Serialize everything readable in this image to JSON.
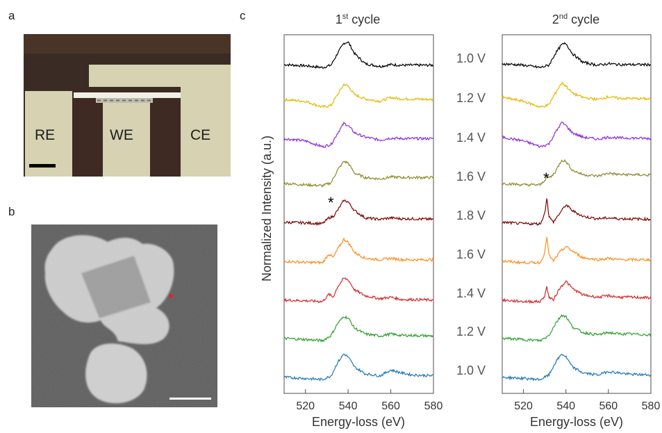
{
  "panels": {
    "a": {
      "label": "a",
      "electrodes": [
        "RE",
        "WE",
        "CE"
      ]
    },
    "b": {
      "label": "b"
    },
    "c": {
      "label": "c"
    }
  },
  "colors": {
    "photo_frame": "#3a2c24",
    "photo_pad": "#d6d2b2",
    "photo_background": "#3e2a22",
    "stem_background": "#5a5a5a",
    "particle": "#cfcfcf",
    "particle_core": "#9d9d9d",
    "marker_dot": "#e0242a"
  },
  "chart_data": {
    "type": "line",
    "xlabel": "Energy-loss (eV)",
    "ylabel": "Normalized Intensity (a.u.)",
    "xlim": [
      510,
      580
    ],
    "xticks": [
      520,
      540,
      560,
      580
    ],
    "voltage_labels": [
      "1.0 V",
      "1.2 V",
      "1.4 V",
      "1.6 V",
      "1.8 V",
      "1.6 V",
      "1.4 V",
      "1.2 V",
      "1.0 V"
    ],
    "series_colors": [
      "#000000",
      "#e6b800",
      "#8a2be2",
      "#8b8b2a",
      "#800000",
      "#ff8c1a",
      "#d62728",
      "#2ca02c",
      "#1f77b4"
    ],
    "panels": [
      {
        "title_main": "1",
        "title_sup": "st",
        "title_rest": " cycle",
        "star_text": "*",
        "series": [
          {
            "x": [
              510,
              520,
              528,
              532,
              535,
              538,
              540,
              543,
              548,
              555,
              560,
              565,
              570,
              580
            ],
            "y": [
              0.12,
              0.08,
              0.02,
              0.1,
              0.5,
              0.85,
              0.9,
              0.5,
              0.15,
              0.06,
              0.12,
              0.1,
              0.1,
              0.1
            ]
          },
          {
            "x": [
              510,
              520,
              528,
              532,
              535,
              538,
              540,
              543,
              548,
              555,
              560,
              565,
              570,
              580
            ],
            "y": [
              0.28,
              0.22,
              0.02,
              0.08,
              0.45,
              0.8,
              0.75,
              0.45,
              0.3,
              0.22,
              0.35,
              0.3,
              0.3,
              0.28
            ]
          },
          {
            "x": [
              510,
              520,
              528,
              532,
              535,
              538,
              540,
              543,
              548,
              555,
              560,
              565,
              570,
              580
            ],
            "y": [
              0.3,
              0.22,
              0.02,
              0.1,
              0.48,
              0.82,
              0.75,
              0.5,
              0.35,
              0.25,
              0.32,
              0.3,
              0.3,
              0.3
            ]
          },
          {
            "x": [
              510,
              520,
              528,
              532,
              535,
              538,
              540,
              543,
              548,
              555,
              560,
              565,
              570,
              580
            ],
            "y": [
              0.1,
              0.05,
              0.02,
              0.12,
              0.55,
              0.85,
              0.8,
              0.45,
              0.3,
              0.25,
              0.32,
              0.3,
              0.3,
              0.3
            ]
          },
          {
            "x": [
              510,
              520,
              528,
              531,
              533,
              535,
              538,
              540,
              543,
              548,
              555,
              560,
              565,
              570,
              580
            ],
            "y": [
              0.1,
              0.08,
              0.05,
              0.25,
              0.3,
              0.5,
              0.85,
              0.8,
              0.5,
              0.25,
              0.2,
              0.25,
              0.22,
              0.22,
              0.2
            ]
          },
          {
            "x": [
              510,
              520,
              528,
              531,
              533,
              535,
              538,
              540,
              543,
              548,
              555,
              560,
              565,
              570,
              580
            ],
            "y": [
              0.1,
              0.06,
              0.05,
              0.35,
              0.22,
              0.5,
              0.85,
              0.75,
              0.4,
              0.2,
              0.15,
              0.2,
              0.15,
              0.15,
              0.15
            ]
          },
          {
            "x": [
              510,
              520,
              528,
              531,
              533,
              535,
              538,
              540,
              543,
              548,
              555,
              560,
              565,
              570,
              580
            ],
            "y": [
              0.1,
              0.08,
              0.05,
              0.3,
              0.2,
              0.55,
              0.85,
              0.8,
              0.45,
              0.25,
              0.15,
              0.2,
              0.12,
              0.12,
              0.1
            ]
          },
          {
            "x": [
              510,
              520,
              528,
              532,
              535,
              538,
              540,
              543,
              548,
              555,
              560,
              565,
              570,
              580
            ],
            "y": [
              0.1,
              0.06,
              0.02,
              0.2,
              0.6,
              0.85,
              0.8,
              0.45,
              0.25,
              0.18,
              0.25,
              0.2,
              0.2,
              0.18
            ]
          },
          {
            "x": [
              510,
              520,
              528,
              532,
              535,
              538,
              540,
              543,
              548,
              555,
              560,
              565,
              570,
              580
            ],
            "y": [
              0.1,
              0.06,
              0.02,
              0.15,
              0.6,
              0.9,
              0.8,
              0.45,
              0.22,
              0.15,
              0.35,
              0.25,
              0.18,
              0.15
            ]
          }
        ]
      },
      {
        "title_main": "2",
        "title_sup": "nd",
        "title_rest": "  cycle",
        "star_text": "*",
        "series": [
          {
            "x": [
              510,
              520,
              528,
              532,
              535,
              538,
              540,
              543,
              548,
              555,
              560,
              565,
              570,
              580
            ],
            "y": [
              0.15,
              0.1,
              0.02,
              0.1,
              0.5,
              0.8,
              0.85,
              0.5,
              0.2,
              0.1,
              0.15,
              0.12,
              0.12,
              0.12
            ]
          },
          {
            "x": [
              510,
              520,
              528,
              532,
              535,
              538,
              540,
              543,
              548,
              555,
              560,
              565,
              570,
              580
            ],
            "y": [
              0.35,
              0.22,
              0.02,
              0.1,
              0.5,
              0.85,
              0.75,
              0.5,
              0.35,
              0.28,
              0.38,
              0.32,
              0.32,
              0.3
            ]
          },
          {
            "x": [
              510,
              520,
              528,
              532,
              535,
              538,
              540,
              543,
              548,
              555,
              560,
              565,
              570,
              580
            ],
            "y": [
              0.35,
              0.22,
              0.02,
              0.12,
              0.5,
              0.85,
              0.75,
              0.5,
              0.35,
              0.28,
              0.35,
              0.32,
              0.32,
              0.3
            ]
          },
          {
            "x": [
              510,
              520,
              528,
              531,
              533,
              535,
              538,
              540,
              543,
              548,
              555,
              560,
              565,
              570,
              580
            ],
            "y": [
              0.1,
              0.05,
              0.05,
              0.3,
              0.32,
              0.5,
              0.9,
              0.85,
              0.55,
              0.4,
              0.35,
              0.45,
              0.4,
              0.4,
              0.38
            ]
          },
          {
            "x": [
              510,
              520,
              528,
              530,
              531,
              532,
              534,
              537,
              540,
              543,
              548,
              555,
              560,
              565,
              570,
              580
            ],
            "y": [
              0.1,
              0.05,
              0.05,
              0.4,
              0.95,
              0.3,
              0.1,
              0.4,
              0.7,
              0.5,
              0.3,
              0.22,
              0.25,
              0.22,
              0.22,
              0.2
            ]
          },
          {
            "x": [
              510,
              520,
              528,
              530,
              531,
              532,
              534,
              537,
              540,
              543,
              548,
              555,
              560,
              565,
              570,
              580
            ],
            "y": [
              0.1,
              0.05,
              0.05,
              0.4,
              0.95,
              0.3,
              0.1,
              0.4,
              0.6,
              0.45,
              0.22,
              0.15,
              0.2,
              0.15,
              0.15,
              0.15
            ]
          },
          {
            "x": [
              510,
              520,
              528,
              530,
              531,
              532,
              534,
              537,
              540,
              543,
              548,
              555,
              560,
              565,
              570,
              580
            ],
            "y": [
              0.1,
              0.05,
              0.05,
              0.25,
              0.55,
              0.2,
              0.1,
              0.5,
              0.75,
              0.5,
              0.28,
              0.2,
              0.25,
              0.2,
              0.2,
              0.18
            ]
          },
          {
            "x": [
              510,
              520,
              528,
              532,
              535,
              538,
              540,
              543,
              548,
              555,
              560,
              565,
              570,
              580
            ],
            "y": [
              0.1,
              0.06,
              0.02,
              0.2,
              0.6,
              0.9,
              0.85,
              0.5,
              0.3,
              0.22,
              0.3,
              0.25,
              0.25,
              0.22
            ]
          },
          {
            "x": [
              510,
              520,
              528,
              532,
              535,
              538,
              540,
              543,
              548,
              555,
              560,
              565,
              570,
              580
            ],
            "y": [
              0.1,
              0.06,
              0.02,
              0.18,
              0.6,
              0.9,
              0.8,
              0.45,
              0.25,
              0.18,
              0.3,
              0.25,
              0.2,
              0.18
            ]
          }
        ]
      }
    ]
  }
}
